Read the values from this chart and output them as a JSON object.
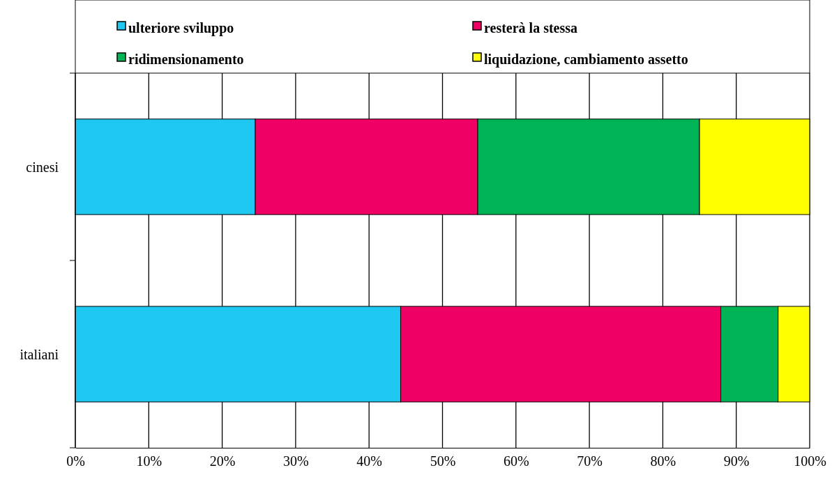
{
  "chart_data": {
    "type": "bar",
    "orientation": "horizontal",
    "stacked": true,
    "categories": [
      "cinesi",
      "italiani"
    ],
    "series": [
      {
        "name": "ulteriore sviluppo",
        "color": "#1ec8f0",
        "values": [
          24.5,
          44.3
        ]
      },
      {
        "name": "resterà la stessa",
        "color": "#f00064",
        "values": [
          30.3,
          43.6
        ]
      },
      {
        "name": "ridimensionamento",
        "color": "#00b455",
        "values": [
          30.2,
          7.8
        ]
      },
      {
        "name": "liquidazione, cambiamento assetto",
        "color": "#ffff00",
        "values": [
          15.0,
          4.3
        ]
      }
    ],
    "xlim": [
      0,
      100
    ],
    "xticks": [
      {
        "value": 0,
        "label": "0%"
      },
      {
        "value": 10,
        "label": "10%"
      },
      {
        "value": 20,
        "label": "20%"
      },
      {
        "value": 30,
        "label": "30%"
      },
      {
        "value": 40,
        "label": "40%"
      },
      {
        "value": 50,
        "label": "50%"
      },
      {
        "value": 60,
        "label": "60%"
      },
      {
        "value": 70,
        "label": "70%"
      },
      {
        "value": 80,
        "label": "80%"
      },
      {
        "value": 90,
        "label": "90%"
      },
      {
        "value": 100,
        "label": "100%"
      }
    ],
    "grid": "x",
    "legend": "top"
  }
}
